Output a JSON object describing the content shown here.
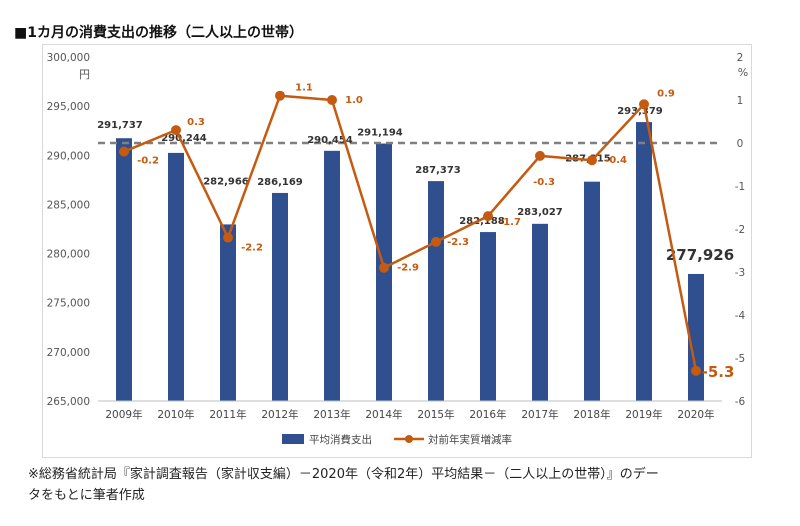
{
  "page_title": "■1カ月の消費支出の推移（二人以上の世帯）",
  "footnote": {
    "line1": "※総務省統計局『家計調査報告（家計収支編）－2020年（令和2年）平均結果－（二人以上の世帯）』のデー",
    "line2": "タをもとに筆者作成"
  },
  "colors": {
    "bar": "#2f4f8f",
    "line": "#c55a11",
    "zero_line": "#808080",
    "value_label": "#333333"
  },
  "chart_data": {
    "type": "bar+line",
    "categories": [
      "2009年",
      "2010年",
      "2011年",
      "2012年",
      "2013年",
      "2014年",
      "2015年",
      "2016年",
      "2017年",
      "2018年",
      "2019年",
      "2020年"
    ],
    "series": [
      {
        "name": "平均消費支出",
        "type": "bar",
        "axis": "left",
        "values": [
          291737,
          290244,
          282966,
          286169,
          290454,
          291194,
          287373,
          282188,
          283027,
          287315,
          293379,
          277926
        ],
        "labels": [
          "291,737",
          "290,244",
          "282,966",
          "286,169",
          "290,454",
          "291,194",
          "287,373",
          "282,188",
          "283,027",
          "287,315",
          "293,379",
          "277,926"
        ]
      },
      {
        "name": "対前年実質増減率",
        "type": "line",
        "axis": "right",
        "values": [
          -0.2,
          0.3,
          -2.2,
          1.1,
          1.0,
          -2.9,
          -2.3,
          -1.7,
          -0.3,
          -0.4,
          0.9,
          -5.3
        ],
        "labels": [
          "-0.2",
          "0.3",
          "-2.2",
          "1.1",
          "1.0",
          "-2.9",
          "-2.3",
          "-1.7",
          "-0.3",
          "-0.4",
          "0.9",
          "-5.3"
        ]
      }
    ],
    "left_axis": {
      "unit": "円",
      "min": 265000,
      "max": 300000,
      "step": 5000,
      "tick_labels": [
        "265,000",
        "270,000",
        "275,000",
        "280,000",
        "285,000",
        "290,000",
        "295,000",
        "300,000"
      ]
    },
    "right_axis": {
      "unit": "%",
      "min": -6,
      "max": 2,
      "step": 1,
      "tick_labels": [
        "-6",
        "-5",
        "-4",
        "-3",
        "-2",
        "-1",
        "0",
        "1",
        "2"
      ]
    },
    "legend": [
      "平均消費支出",
      "対前年実質増減率"
    ],
    "legend_position": "bottom"
  }
}
